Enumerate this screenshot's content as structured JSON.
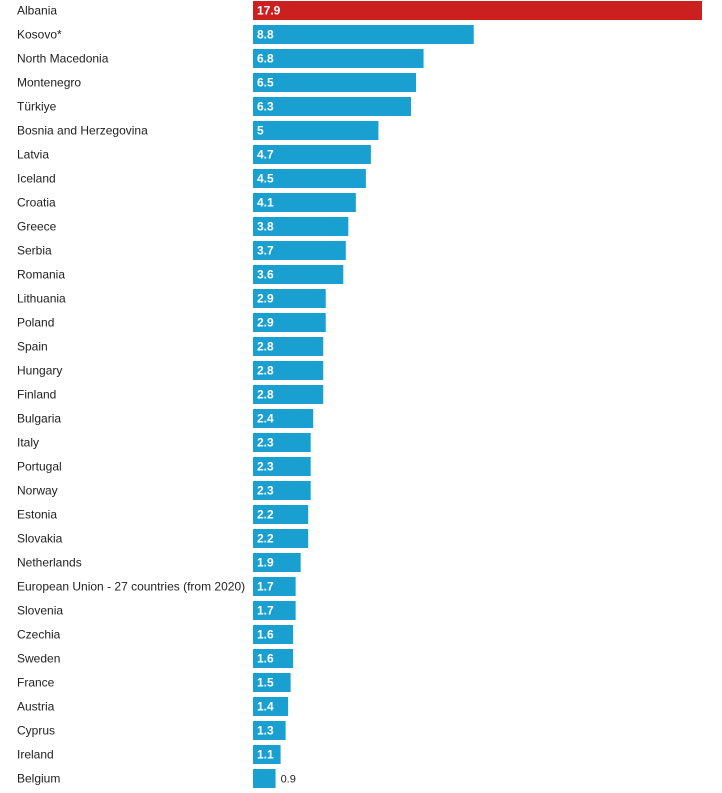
{
  "chart_data": {
    "type": "bar",
    "orientation": "horizontal",
    "title": "",
    "xlabel": "",
    "ylabel": "",
    "grid": false,
    "legend": "none",
    "xlim": [
      0,
      17.9
    ],
    "highlight_color": "#cc1f1f",
    "bar_color": "#1aa0d0",
    "highlight_category": "Albania",
    "categories": [
      "Albania",
      "Kosovo*",
      "North Macedonia",
      "Montenegro",
      "Türkiye",
      "Bosnia and Herzegovina",
      "Latvia",
      "Iceland",
      "Croatia",
      "Greece",
      "Serbia",
      "Romania",
      "Lithuania",
      "Poland",
      "Spain",
      "Hungary",
      "Finland",
      "Bulgaria",
      "Italy",
      "Portugal",
      "Norway",
      "Estonia",
      "Slovakia",
      "Netherlands",
      "European Union - 27 countries (from 2020)",
      "Slovenia",
      "Czechia",
      "Sweden",
      "France",
      "Austria",
      "Cyprus",
      "Ireland",
      "Belgium"
    ],
    "values": [
      17.9,
      8.8,
      6.8,
      6.5,
      6.3,
      5,
      4.7,
      4.5,
      4.1,
      3.8,
      3.7,
      3.6,
      2.9,
      2.9,
      2.8,
      2.8,
      2.8,
      2.4,
      2.3,
      2.3,
      2.3,
      2.2,
      2.2,
      1.9,
      1.7,
      1.7,
      1.6,
      1.6,
      1.5,
      1.4,
      1.3,
      1.1,
      0.9
    ]
  }
}
